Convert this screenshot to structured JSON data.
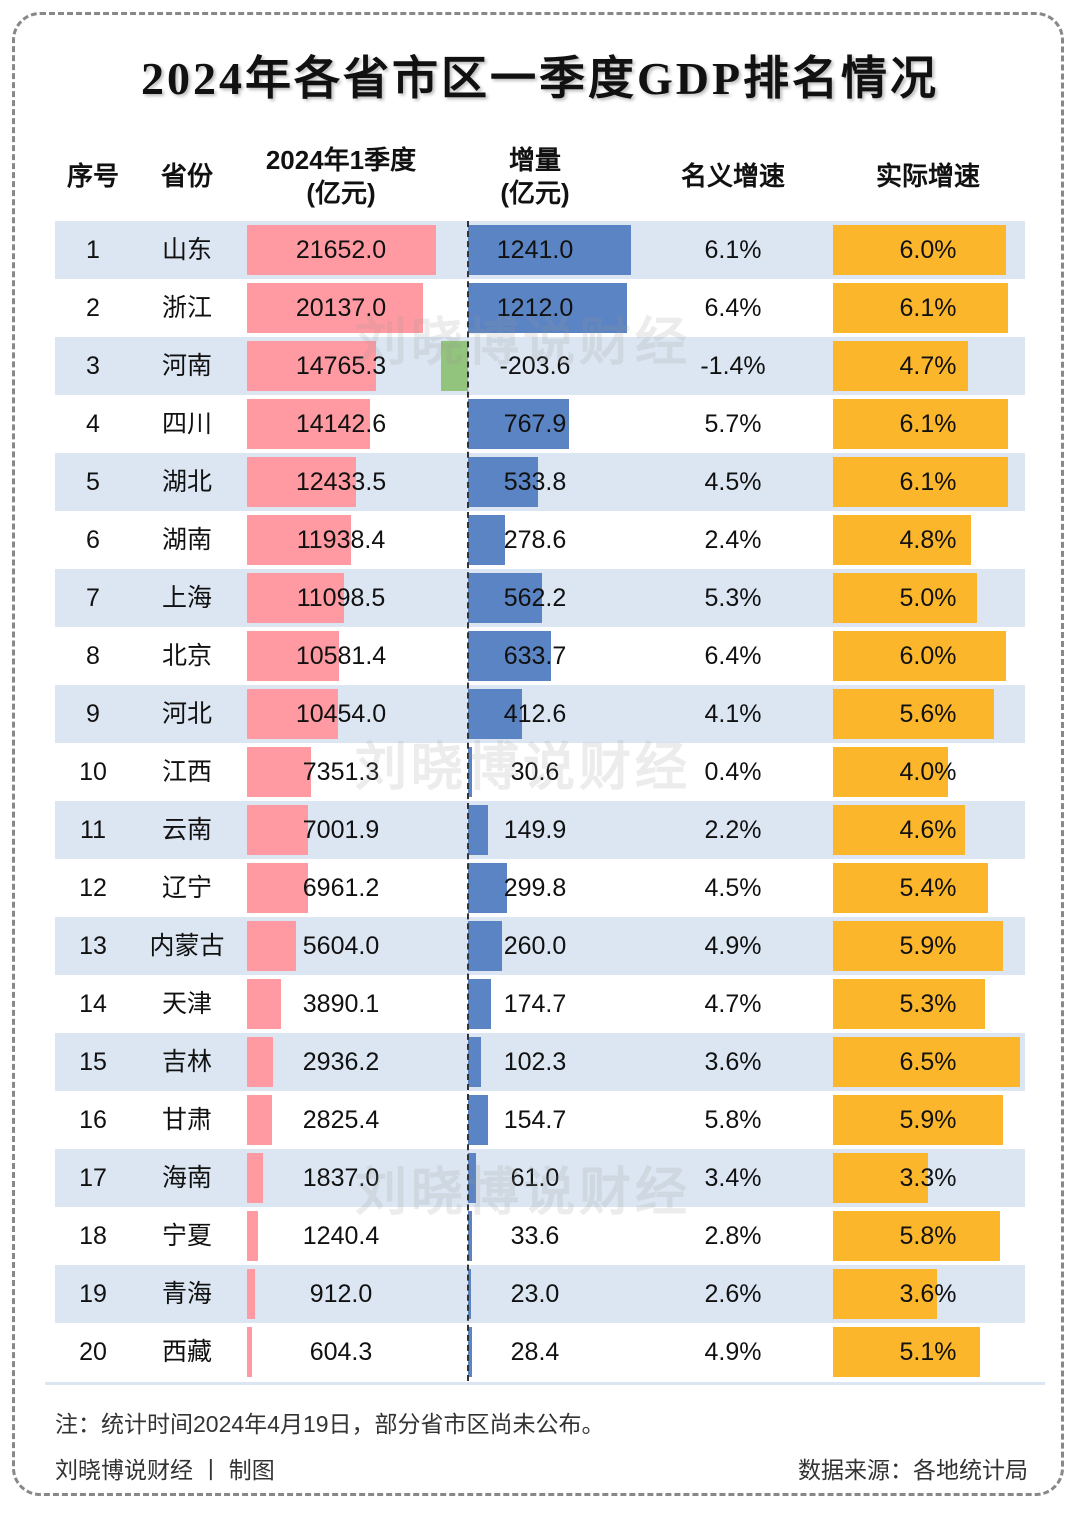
{
  "header": {
    "title": "2024年各省市区一季度GDP排名情况"
  },
  "watermark": "刘晓博说财经",
  "table": {
    "columns": [
      "序号",
      "省份",
      [
        "2024年1季度",
        "(亿元)"
      ],
      [
        "增量",
        "(亿元)"
      ],
      "名义增速",
      "实际增速"
    ],
    "rows": [
      [
        1,
        "山东",
        "21652.0",
        "1241.0",
        "6.1%",
        "6.0%"
      ],
      [
        2,
        "浙江",
        "20137.0",
        "1212.0",
        "6.4%",
        "6.1%"
      ],
      [
        3,
        "河南",
        "14765.3",
        "-203.6",
        "-1.4%",
        "4.7%"
      ],
      [
        4,
        "四川",
        "14142.6",
        "767.9",
        "5.7%",
        "6.1%"
      ],
      [
        5,
        "湖北",
        "12433.5",
        "533.8",
        "4.5%",
        "6.1%"
      ],
      [
        6,
        "湖南",
        "11938.4",
        "278.6",
        "2.4%",
        "4.8%"
      ],
      [
        7,
        "上海",
        "11098.5",
        "562.2",
        "5.3%",
        "5.0%"
      ],
      [
        8,
        "北京",
        "10581.4",
        "633.7",
        "6.4%",
        "6.0%"
      ],
      [
        9,
        "河北",
        "10454.0",
        "412.6",
        "4.1%",
        "5.6%"
      ],
      [
        10,
        "江西",
        "7351.3",
        "30.6",
        "0.4%",
        "4.0%"
      ],
      [
        11,
        "云南",
        "7001.9",
        "149.9",
        "2.2%",
        "4.6%"
      ],
      [
        12,
        "辽宁",
        "6961.2",
        "299.8",
        "4.5%",
        "5.4%"
      ],
      [
        13,
        "内蒙古",
        "5604.0",
        "260.0",
        "4.9%",
        "5.9%"
      ],
      [
        14,
        "天津",
        "3890.1",
        "174.7",
        "4.7%",
        "5.3%"
      ],
      [
        15,
        "吉林",
        "2936.2",
        "102.3",
        "3.6%",
        "6.5%"
      ],
      [
        16,
        "甘肃",
        "2825.4",
        "154.7",
        "5.8%",
        "5.9%"
      ],
      [
        17,
        "海南",
        "1837.0",
        "61.0",
        "3.4%",
        "3.3%"
      ],
      [
        18,
        "宁夏",
        "1240.4",
        "33.6",
        "2.8%",
        "5.8%"
      ],
      [
        19,
        "青海",
        "912.0",
        "23.0",
        "2.6%",
        "3.6%"
      ],
      [
        20,
        "西藏",
        "604.3",
        "28.4",
        "4.9%",
        "5.1%"
      ]
    ]
  },
  "footer": {
    "note": "注：统计时间2024年4月19日，部分省市区尚未公布。",
    "credit": "刘晓博说财经 丨 制图",
    "source": "数据来源：各地统计局"
  }
}
